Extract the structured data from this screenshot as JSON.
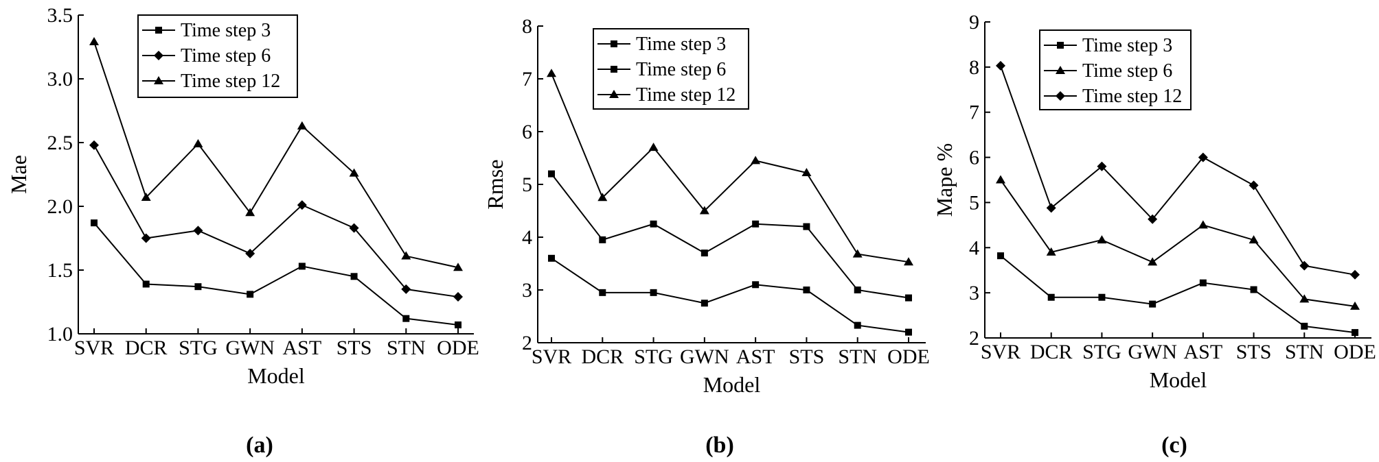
{
  "figure": {
    "captions": [
      "(a)",
      "(b)",
      "(c)"
    ]
  },
  "chart_data": [
    {
      "type": "line",
      "caption": "(a)",
      "categories": [
        "SVR",
        "DCR",
        "STG",
        "GWN",
        "AST",
        "STS",
        "STN",
        "ODE"
      ],
      "xlabel": "Model",
      "ylabel": "Mae",
      "ylim": [
        1.0,
        3.5
      ],
      "yticks": [
        1.0,
        1.5,
        2.0,
        2.5,
        3.0,
        3.5
      ],
      "ytick_labels": [
        "1.0",
        "1.5",
        "2.0",
        "2.5",
        "3.0",
        "3.5"
      ],
      "grid": false,
      "legend_position": "top-center",
      "series": [
        {
          "name": "Time step 3",
          "marker": "square",
          "values": [
            1.87,
            1.39,
            1.37,
            1.31,
            1.53,
            1.45,
            1.12,
            1.07
          ]
        },
        {
          "name": "Time step 6",
          "marker": "diamond",
          "values": [
            2.48,
            1.75,
            1.81,
            1.63,
            2.01,
            1.83,
            1.35,
            1.29
          ]
        },
        {
          "name": "Time step 12",
          "marker": "triangle",
          "values": [
            3.29,
            2.07,
            2.49,
            1.95,
            2.63,
            2.26,
            1.61,
            1.52
          ]
        }
      ]
    },
    {
      "type": "line",
      "caption": "(b)",
      "categories": [
        "SVR",
        "DCR",
        "STG",
        "GWN",
        "AST",
        "STS",
        "STN",
        "ODE"
      ],
      "xlabel": "Model",
      "ylabel": "Rmse",
      "ylim": [
        2,
        8
      ],
      "yticks": [
        2,
        3,
        4,
        5,
        6,
        7,
        8
      ],
      "ytick_labels": [
        "2",
        "3",
        "4",
        "5",
        "6",
        "7",
        "8"
      ],
      "grid": false,
      "legend_position": "top-center",
      "series": [
        {
          "name": "Time step 3",
          "marker": "square",
          "values": [
            3.6,
            2.95,
            2.95,
            2.75,
            3.1,
            3.0,
            2.33,
            2.2
          ]
        },
        {
          "name": "Time step 6",
          "marker": "square",
          "values": [
            5.2,
            3.95,
            4.25,
            3.7,
            4.25,
            4.2,
            3.0,
            2.85
          ]
        },
        {
          "name": "Time step 12",
          "marker": "triangle",
          "values": [
            7.1,
            4.75,
            5.7,
            4.5,
            5.45,
            5.22,
            3.68,
            3.53
          ]
        }
      ]
    },
    {
      "type": "line",
      "caption": "(c)",
      "categories": [
        "SVR",
        "DCR",
        "STG",
        "GWN",
        "AST",
        "STS",
        "STN",
        "ODE"
      ],
      "xlabel": "Model",
      "ylabel": "Mape %",
      "ylim": [
        2,
        9
      ],
      "yticks": [
        2,
        3,
        4,
        5,
        6,
        7,
        8,
        9
      ],
      "ytick_labels": [
        "2",
        "3",
        "4",
        "5",
        "6",
        "7",
        "8",
        "9"
      ],
      "grid": false,
      "legend_position": "top-center",
      "series": [
        {
          "name": "Time step 3",
          "marker": "square",
          "values": [
            3.82,
            2.9,
            2.9,
            2.75,
            3.22,
            3.07,
            2.26,
            2.12
          ]
        },
        {
          "name": "Time step 6",
          "marker": "triangle",
          "values": [
            5.5,
            3.9,
            4.17,
            3.68,
            4.5,
            4.17,
            2.86,
            2.7
          ]
        },
        {
          "name": "Time step 12",
          "marker": "diamond",
          "values": [
            8.03,
            4.88,
            5.8,
            4.63,
            6.0,
            5.38,
            3.6,
            3.4
          ]
        }
      ]
    }
  ]
}
